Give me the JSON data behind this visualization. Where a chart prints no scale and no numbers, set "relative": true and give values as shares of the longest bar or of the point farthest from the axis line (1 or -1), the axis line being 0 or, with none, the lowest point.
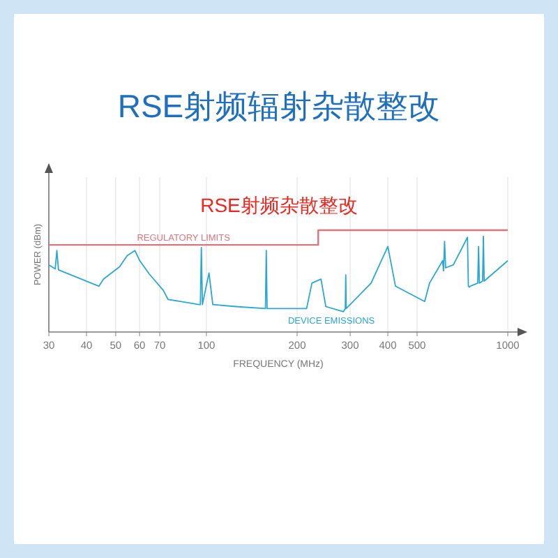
{
  "chart_data": {
    "type": "line",
    "title": "RSE射频辐射杂散整改",
    "subtitle": "RSE射频杂散整改",
    "xlabel": "FREQUENCY (MHz)",
    "ylabel": "POWER (dBm)",
    "relative": true,
    "log": "x",
    "grid": "x",
    "xlim": [
      30,
      1000
    ],
    "xticks": [
      30,
      40,
      50,
      60,
      70,
      100,
      200,
      300,
      400,
      500,
      1000
    ],
    "series": [
      {
        "name": "REGULATORY LIMITS",
        "type": "step",
        "color": "#d9757f",
        "x": [
          30,
          235,
          1000
        ],
        "values": [
          0.855,
          1.0,
          1.0
        ]
      },
      {
        "name": "DEVICE EMISSIONS",
        "color": "#2aa7d3",
        "x": [
          30,
          31.5,
          31.9,
          32.3,
          44,
          45.6,
          51.5,
          54.6,
          57.9,
          60.1,
          64.6,
          71.9,
          74.6,
          94.4,
          95.5,
          96.2,
          97,
          102,
          105,
          125,
          157,
          158,
          159,
          215,
          224,
          240,
          249,
          285,
          289,
          290,
          291,
          352,
          400,
          424,
          530,
          550,
          608,
          612,
          617,
          622,
          660,
          735,
          740,
          745,
          750,
          795,
          800,
          805,
          825,
          830,
          835,
          1000
        ],
        "values": [
          0.66,
          0.62,
          0.8,
          0.61,
          0.45,
          0.52,
          0.64,
          0.75,
          0.8,
          0.7,
          0.57,
          0.41,
          0.32,
          0.27,
          0.27,
          0.83,
          0.27,
          0.58,
          0.27,
          0.25,
          0.23,
          0.8,
          0.23,
          0.23,
          0.48,
          0.52,
          0.25,
          0.2,
          0.23,
          0.56,
          0.23,
          0.48,
          0.84,
          0.45,
          0.3,
          0.48,
          0.7,
          0.6,
          0.89,
          0.63,
          0.66,
          0.93,
          0.45,
          0.44,
          0.45,
          0.48,
          0.84,
          0.48,
          0.5,
          0.94,
          0.5,
          0.7
        ]
      }
    ]
  }
}
